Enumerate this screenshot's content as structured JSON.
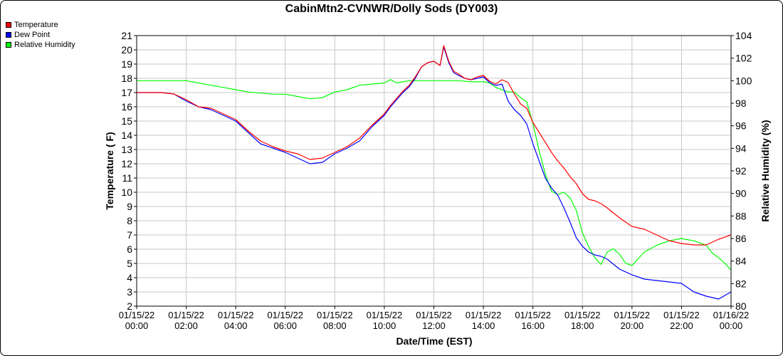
{
  "chart_data": {
    "type": "line",
    "title": "CabinMtn2-CVNWR/Dolly Sods (DY003)",
    "xlabel": "Date/Time (EST)",
    "ylabel_left": "Temperature ( F)",
    "ylabel_right": "Relative Humidity (%)",
    "x_ticks": [
      {
        "date": "01/15/22",
        "time": "00:00"
      },
      {
        "date": "01/15/22",
        "time": "02:00"
      },
      {
        "date": "01/15/22",
        "time": "04:00"
      },
      {
        "date": "01/15/22",
        "time": "06:00"
      },
      {
        "date": "01/15/22",
        "time": "08:00"
      },
      {
        "date": "01/15/22",
        "time": "10:00"
      },
      {
        "date": "01/15/22",
        "time": "12:00"
      },
      {
        "date": "01/15/22",
        "time": "14:00"
      },
      {
        "date": "01/15/22",
        "time": "16:00"
      },
      {
        "date": "01/15/22",
        "time": "18:00"
      },
      {
        "date": "01/15/22",
        "time": "20:00"
      },
      {
        "date": "01/15/22",
        "time": "22:00"
      },
      {
        "date": "01/16/22",
        "time": "00:00"
      }
    ],
    "xlim": [
      0,
      24
    ],
    "ylim_left": [
      2,
      21
    ],
    "yticks_left": [
      2,
      3,
      4,
      5,
      6,
      7,
      8,
      9,
      10,
      11,
      12,
      13,
      14,
      15,
      16,
      17,
      18,
      19,
      20,
      21
    ],
    "ylim_right": [
      80,
      104
    ],
    "yticks_right": [
      80,
      82,
      84,
      86,
      88,
      90,
      92,
      94,
      96,
      98,
      100,
      102,
      104
    ],
    "grid": true,
    "legend_position": "top-left",
    "series": [
      {
        "name": "Temperature",
        "color": "#ff0000",
        "axis": "left",
        "x": [
          0,
          1,
          1.5,
          2,
          2.5,
          3,
          3.5,
          4,
          4.5,
          5,
          5.5,
          6,
          6.5,
          6.75,
          7,
          7.5,
          8,
          8.5,
          9,
          9.5,
          10,
          10.25,
          10.5,
          10.75,
          11,
          11.25,
          11.5,
          11.75,
          12,
          12.25,
          12.4,
          12.6,
          12.8,
          13,
          13.25,
          13.5,
          13.75,
          14,
          14.25,
          14.5,
          14.75,
          15,
          15.25,
          15.5,
          15.75,
          16,
          16.25,
          16.5,
          16.75,
          17,
          17.25,
          17.5,
          17.75,
          18,
          18.25,
          18.5,
          18.75,
          19,
          19.5,
          20,
          20.5,
          21,
          21.5,
          22,
          22.5,
          23,
          23.5,
          24
        ],
        "y": [
          17,
          17,
          16.9,
          16.5,
          16,
          15.9,
          15.5,
          15.1,
          14.3,
          13.6,
          13.2,
          12.9,
          12.7,
          12.5,
          12.3,
          12.4,
          12.8,
          13.2,
          13.8,
          14.7,
          15.5,
          16.1,
          16.6,
          17.1,
          17.5,
          18.1,
          18.8,
          19.1,
          19.2,
          18.9,
          20.3,
          19.2,
          18.5,
          18.3,
          18,
          17.9,
          18.1,
          18.2,
          17.8,
          17.6,
          17.9,
          17.7,
          16.9,
          16.2,
          15.9,
          14.9,
          14.2,
          13.5,
          12.8,
          12.2,
          11.7,
          11.1,
          10.6,
          9.9,
          9.5,
          9.4,
          9.2,
          8.9,
          8.2,
          7.6,
          7.4,
          7,
          6.6,
          6.4,
          6.3,
          6.3,
          6.7,
          7
        ]
      },
      {
        "name": "Dew Point",
        "color": "#0000ff",
        "axis": "left",
        "x": [
          0,
          1,
          1.5,
          2,
          2.5,
          3,
          3.5,
          4,
          4.5,
          5,
          5.5,
          6,
          6.5,
          6.75,
          7,
          7.5,
          8,
          8.5,
          9,
          9.5,
          10,
          10.25,
          10.5,
          10.75,
          11,
          11.25,
          11.5,
          11.75,
          12,
          12.25,
          12.4,
          12.6,
          12.8,
          13,
          13.25,
          13.5,
          13.75,
          14,
          14.25,
          14.5,
          14.75,
          15,
          15.25,
          15.5,
          15.75,
          16,
          16.25,
          16.5,
          16.75,
          17,
          17.25,
          17.5,
          17.75,
          18,
          18.25,
          18.5,
          18.75,
          19,
          19.5,
          20,
          20.5,
          21,
          21.5,
          22,
          22.5,
          23,
          23.5,
          24
        ],
        "y": [
          17,
          17,
          16.9,
          16.4,
          16,
          15.8,
          15.4,
          15,
          14.2,
          13.4,
          13.1,
          12.8,
          12.4,
          12.2,
          12,
          12.1,
          12.7,
          13.1,
          13.6,
          14.6,
          15.4,
          16,
          16.5,
          17,
          17.4,
          18,
          18.8,
          19.1,
          19.2,
          18.9,
          20.2,
          19.1,
          18.4,
          18.2,
          18,
          17.9,
          18,
          18.1,
          17.7,
          17.5,
          17.6,
          16.4,
          15.8,
          15.4,
          14.8,
          13.4,
          12.2,
          11,
          10.3,
          9.8,
          8.9,
          7.9,
          6.8,
          6.2,
          5.8,
          5.6,
          5.5,
          5.3,
          4.6,
          4.2,
          3.9,
          3.8,
          3.7,
          3.6,
          3,
          2.7,
          2.5,
          3
        ]
      },
      {
        "name": "Relative Humidity",
        "color": "#00ff00",
        "axis": "right",
        "x": [
          0,
          1,
          1.5,
          2,
          2.5,
          3,
          3.5,
          4,
          4.5,
          5,
          5.5,
          6,
          6.5,
          7,
          7.5,
          8,
          8.5,
          9,
          9.5,
          10,
          10.25,
          10.5,
          10.75,
          11,
          11.25,
          11.5,
          11.75,
          12,
          12.5,
          13,
          13.5,
          14,
          14.25,
          14.5,
          14.75,
          15,
          15.25,
          15.5,
          15.75,
          16,
          16.25,
          16.5,
          16.75,
          17,
          17.25,
          17.5,
          17.75,
          18,
          18.25,
          18.5,
          18.75,
          19,
          19.25,
          19.5,
          19.75,
          20,
          20.25,
          20.5,
          21,
          21.5,
          22,
          22.5,
          23,
          23.25,
          23.5,
          23.75,
          24
        ],
        "y": [
          100,
          100,
          100,
          100,
          99.8,
          99.6,
          99.4,
          99.2,
          99,
          98.9,
          98.8,
          98.8,
          98.6,
          98.4,
          98.5,
          99,
          99.2,
          99.6,
          99.7,
          99.8,
          100.1,
          99.8,
          99.9,
          100,
          100,
          100,
          100,
          100,
          100,
          100,
          99.9,
          99.9,
          99.8,
          99.4,
          99.2,
          99,
          99,
          98.5,
          98.1,
          96.2,
          93.8,
          91.7,
          90.2,
          89.9,
          90.1,
          89.6,
          88.5,
          86.5,
          85.3,
          84.3,
          83.7,
          84.8,
          85.1,
          84.6,
          83.8,
          83.6,
          84.2,
          84.8,
          85.4,
          85.8,
          86,
          85.8,
          85.4,
          84.7,
          84.3,
          83.8,
          83.2
        ]
      }
    ]
  }
}
